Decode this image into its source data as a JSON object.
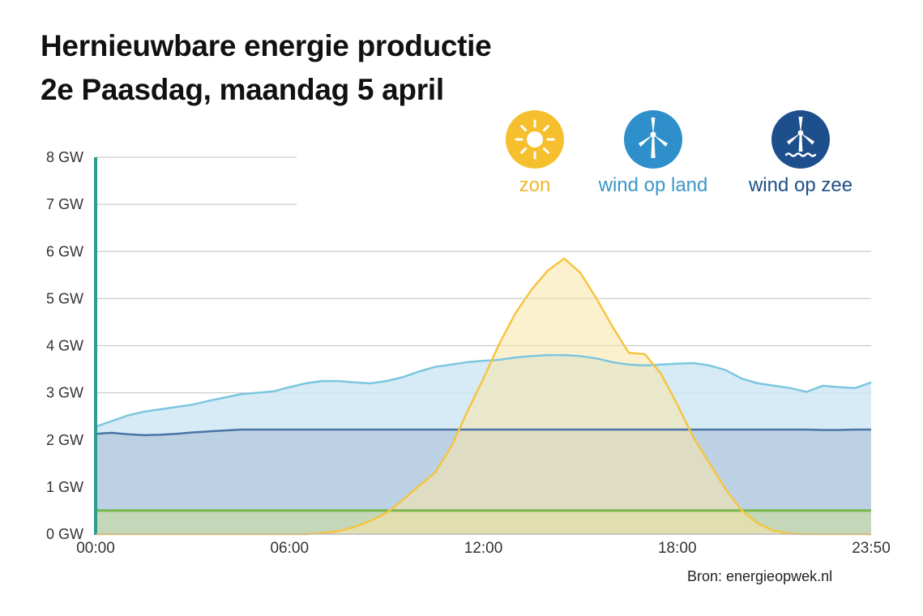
{
  "title_line1": "Hernieuwbare energie productie",
  "title_line2": "2e Paasdag, maandag 5 april",
  "source": "Bron: energieopwek.nl",
  "legend": [
    {
      "label": "zon",
      "icon": "sun-icon",
      "color": "#f5bf2e",
      "text_color": "#f0b62c"
    },
    {
      "label": "wind op land",
      "icon": "wind-turbine-icon",
      "color": "#2e8fca",
      "text_color": "#3a97c8"
    },
    {
      "label": "wind op zee",
      "icon": "offshore-wind-turbine-icon",
      "color": "#1d4f8c",
      "text_color": "#1f4f87"
    }
  ],
  "colors": {
    "axis": "#2a9d8f",
    "grid": "#cccccc",
    "zon_line": "#f5c541",
    "zon_fill": "#f9e6a8",
    "land_line": "#7cc6df",
    "land_fill": "#cfe8f3",
    "zee_line": "#4a73a6",
    "zee_fill": "#b8cde2",
    "other_line": "#77b84a",
    "other_fill": "#c6d8b0"
  },
  "chart_data": {
    "type": "area",
    "x": [
      "00:00",
      "00:30",
      "01:00",
      "01:30",
      "02:00",
      "02:30",
      "03:00",
      "03:30",
      "04:00",
      "04:30",
      "05:00",
      "05:30",
      "06:00",
      "06:30",
      "07:00",
      "07:30",
      "08:00",
      "08:30",
      "09:00",
      "09:30",
      "10:00",
      "10:30",
      "11:00",
      "11:30",
      "12:00",
      "12:30",
      "13:00",
      "13:30",
      "14:00",
      "14:30",
      "15:00",
      "15:30",
      "16:00",
      "16:30",
      "17:00",
      "17:30",
      "18:00",
      "18:30",
      "19:00",
      "19:30",
      "20:00",
      "20:30",
      "21:00",
      "21:30",
      "22:00",
      "22:30",
      "23:00",
      "23:30",
      "23:50"
    ],
    "x_tick_labels": [
      "00:00",
      "06:00",
      "12:00",
      "18:00",
      "23:50"
    ],
    "y_tick_labels": [
      "0 GW",
      "1 GW",
      "2 GW",
      "3 GW",
      "4 GW",
      "5 GW",
      "6 GW",
      "7 GW",
      "8 GW"
    ],
    "ylim": [
      0,
      8
    ],
    "unit": "GW",
    "series": [
      {
        "name": "wind op land",
        "stack": "total",
        "values": [
          2.28,
          2.4,
          2.52,
          2.6,
          2.65,
          2.7,
          2.75,
          2.83,
          2.9,
          2.97,
          3.0,
          3.03,
          3.12,
          3.2,
          3.25,
          3.25,
          3.22,
          3.2,
          3.25,
          3.33,
          3.45,
          3.55,
          3.6,
          3.65,
          3.68,
          3.7,
          3.75,
          3.78,
          3.8,
          3.8,
          3.78,
          3.73,
          3.65,
          3.6,
          3.58,
          3.6,
          3.62,
          3.63,
          3.58,
          3.48,
          3.3,
          3.2,
          3.15,
          3.1,
          3.02,
          3.15,
          3.12,
          3.1,
          3.22
        ]
      },
      {
        "name": "wind op zee",
        "values": [
          2.13,
          2.15,
          2.12,
          2.1,
          2.11,
          2.13,
          2.16,
          2.18,
          2.2,
          2.22,
          2.22,
          2.22,
          2.22,
          2.22,
          2.22,
          2.22,
          2.22,
          2.22,
          2.22,
          2.22,
          2.22,
          2.22,
          2.22,
          2.22,
          2.22,
          2.22,
          2.22,
          2.22,
          2.22,
          2.22,
          2.22,
          2.22,
          2.22,
          2.22,
          2.22,
          2.22,
          2.22,
          2.22,
          2.22,
          2.22,
          2.22,
          2.22,
          2.22,
          2.22,
          2.22,
          2.21,
          2.21,
          2.22,
          2.22
        ]
      },
      {
        "name": "zon",
        "values": [
          0,
          0,
          0,
          0,
          0,
          0,
          0,
          0,
          0,
          0,
          0,
          0,
          0,
          0,
          0.02,
          0.06,
          0.15,
          0.28,
          0.45,
          0.72,
          1.02,
          1.3,
          1.85,
          2.6,
          3.3,
          4.05,
          4.7,
          5.2,
          5.6,
          5.85,
          5.55,
          5.0,
          4.4,
          3.85,
          3.82,
          3.4,
          2.75,
          2.05,
          1.5,
          0.95,
          0.5,
          0.22,
          0.07,
          0.01,
          0,
          0,
          0,
          0,
          0
        ]
      },
      {
        "name": "",
        "values": [
          0.5,
          0.5,
          0.5,
          0.5,
          0.5,
          0.5,
          0.5,
          0.5,
          0.5,
          0.5,
          0.5,
          0.5,
          0.5,
          0.5,
          0.5,
          0.5,
          0.5,
          0.5,
          0.5,
          0.5,
          0.5,
          0.5,
          0.5,
          0.5,
          0.5,
          0.5,
          0.5,
          0.5,
          0.5,
          0.5,
          0.5,
          0.5,
          0.5,
          0.5,
          0.5,
          0.5,
          0.5,
          0.5,
          0.5,
          0.5,
          0.5,
          0.5,
          0.5,
          0.5,
          0.5,
          0.5,
          0.5,
          0.5,
          0.5
        ]
      }
    ],
    "grid": true,
    "legend_position": "top-right"
  }
}
